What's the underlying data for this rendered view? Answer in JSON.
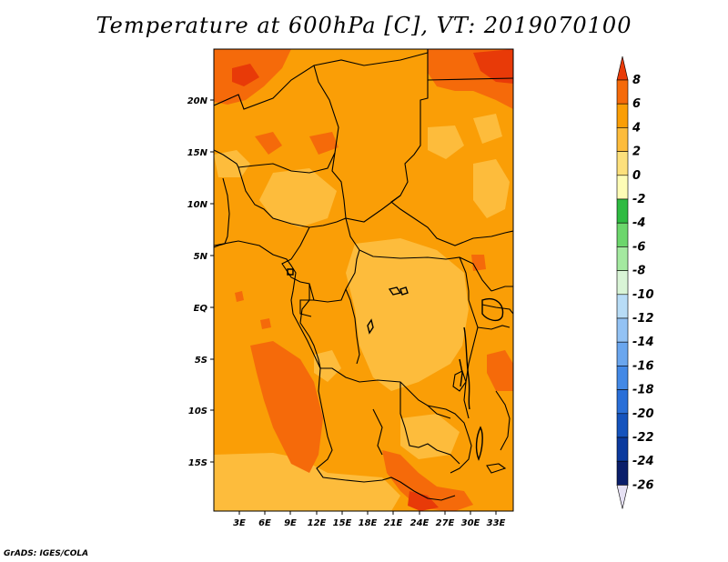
{
  "title": "Temperature at 600hPa [C], VT: 2019070100",
  "credit": "GrADS: IGES/COLA",
  "map": {
    "lat_labels": [
      "20N",
      "15N",
      "10N",
      "5N",
      "EQ",
      "5S",
      "10S",
      "15S"
    ],
    "lon_labels": [
      "3E",
      "6E",
      "9E",
      "12E",
      "15E",
      "18E",
      "21E",
      "24E",
      "27E",
      "30E",
      "33E"
    ],
    "base_color": "#fa9e06"
  },
  "colorbar": {
    "labels": [
      "8",
      "6",
      "4",
      "2",
      "0",
      "-2",
      "-4",
      "-6",
      "-8",
      "-10",
      "-12",
      "-14",
      "-16",
      "-18",
      "-20",
      "-22",
      "-24",
      "-26"
    ],
    "colors": [
      "#e83a08",
      "#f56a0a",
      "#fa9e06",
      "#fdbc3c",
      "#fde07c",
      "#fefcb6",
      "#2fbb42",
      "#6cd66c",
      "#a4e9a0",
      "#d9f4d6",
      "#b8dcf6",
      "#93c2f4",
      "#6aa6ee",
      "#4389e6",
      "#2a6fd8",
      "#1553bd",
      "#0b3a9e",
      "#0a1e6a",
      "#e6e1f4"
    ]
  }
}
